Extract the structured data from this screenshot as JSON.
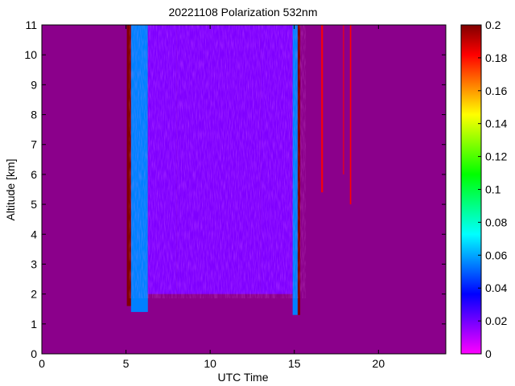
{
  "chart_data": {
    "type": "heatmap",
    "title": "20221108 Polarization 532nm",
    "xlabel": "UTC Time",
    "ylabel": "Altitude [km]",
    "xlim": [
      0,
      24
    ],
    "ylim": [
      0,
      11
    ],
    "x_ticks": [
      0,
      5,
      10,
      15,
      20
    ],
    "y_ticks": [
      0,
      1,
      2,
      3,
      4,
      5,
      6,
      7,
      8,
      9,
      10,
      11
    ],
    "colorbar": {
      "range": [
        0,
        0.2
      ],
      "ticks": [
        0,
        0.02,
        0.04,
        0.06,
        0.08,
        0.1,
        0.12,
        0.14,
        0.16,
        0.18,
        0.2
      ],
      "colormap": [
        "#ff00ff",
        "#7f00ff",
        "#0000ff",
        "#0080ff",
        "#00ffff",
        "#00ff80",
        "#00ff00",
        "#80ff00",
        "#ffff00",
        "#ff8000",
        "#ff0000",
        "#800000"
      ]
    },
    "background_value": 0.0,
    "background_color": "#8b008b",
    "regions": [
      {
        "x": [
          5.05,
          5.3
        ],
        "y": [
          1.6,
          11
        ],
        "value": 0.2
      },
      {
        "x": [
          5.3,
          6.3
        ],
        "y": [
          1.4,
          11
        ],
        "value": 0.05
      },
      {
        "x": [
          6.3,
          8.0
        ],
        "y": [
          2.0,
          11
        ],
        "value": 0.02
      },
      {
        "x": [
          8.0,
          13.0
        ],
        "y": [
          2.0,
          11
        ],
        "value": 0.01
      },
      {
        "x": [
          13.0,
          14.9
        ],
        "y": [
          2.0,
          11
        ],
        "value": 0.02
      },
      {
        "x": [
          14.9,
          15.2
        ],
        "y": [
          1.3,
          11
        ],
        "value": 0.05
      },
      {
        "x": [
          15.2,
          15.35
        ],
        "y": [
          1.3,
          11
        ],
        "value": 0.2
      },
      {
        "x": [
          16.6,
          16.7
        ],
        "y": [
          5.4,
          11
        ],
        "value": 0.19
      },
      {
        "x": [
          17.9,
          17.95
        ],
        "y": [
          6.0,
          11
        ],
        "value": 0.19
      },
      {
        "x": [
          18.3,
          18.38
        ],
        "y": [
          5.0,
          11
        ],
        "value": 0.19
      }
    ]
  }
}
